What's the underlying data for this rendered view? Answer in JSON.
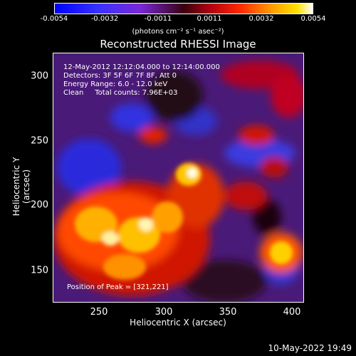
{
  "colorbar": {
    "tick_labels": [
      "-0.0054",
      "-0.0032",
      "-0.0011",
      "0.0011",
      "0.0032",
      "0.0054"
    ],
    "units": "(photons cm⁻² s⁻¹ asec⁻²)"
  },
  "plot": {
    "title": "Reconstructed RHESSI Image",
    "info_lines": [
      "12-May-2012 12:12:04.000 to 12:14:00.000",
      "Detectors: 3F 5F 6F 7F 8F, Att 0",
      "Energy Range: 6.0 - 12.0 keV",
      "Clean     Total counts: 7.96E+03"
    ],
    "peak_label": "Position of Peak = [321,221]",
    "xlabel": "Heliocentric X (arcsec)",
    "ylabel": "Heliocentric Y (arcsec)",
    "x_ticks": [
      "250",
      "300",
      "350",
      "400"
    ],
    "y_ticks": [
      "300",
      "250",
      "200",
      "150"
    ]
  },
  "footer": {
    "timestamp": "10-May-2022 19:49"
  }
}
